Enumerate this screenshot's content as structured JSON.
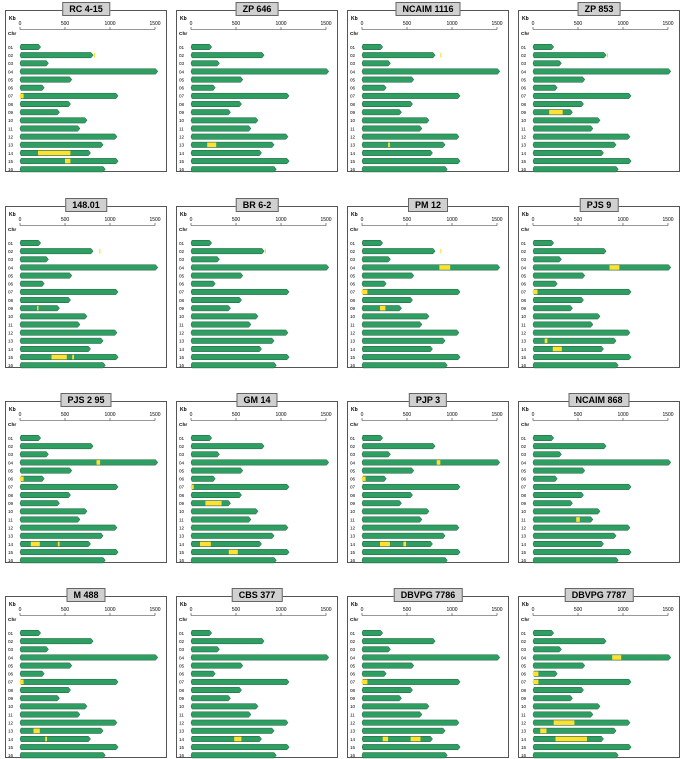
{
  "chart_data": {
    "type": "bar",
    "axis": {
      "unit_label": "Kb",
      "row_label": "Chr",
      "ticks": [
        0,
        500,
        1000,
        1500
      ],
      "xlim": [
        0,
        1500
      ]
    },
    "chromosomes": [
      "01",
      "02",
      "03",
      "04",
      "05",
      "06",
      "07",
      "08",
      "09",
      "10",
      "11",
      "12",
      "13",
      "14",
      "15",
      "16"
    ],
    "chromosome_lengths_kb": [
      230,
      813,
      316,
      1531,
      576,
      270,
      1090,
      562,
      439,
      745,
      666,
      1078,
      924,
      784,
      1091,
      948
    ],
    "colors": {
      "chromosome": "#2e9e62",
      "chromosome_border": "#1d5c3a",
      "highlight": "#ffe033",
      "centromere": "#b9d34a"
    },
    "panels": [
      {
        "title": "RC 4-15",
        "highlights": [
          {
            "chr": "02",
            "start": 820,
            "end": 880
          },
          {
            "chr": "07",
            "start": 0,
            "end": 40
          },
          {
            "chr": "14",
            "start": 200,
            "end": 560
          },
          {
            "chr": "15",
            "start": 500,
            "end": 560
          }
        ]
      },
      {
        "title": "ZP 646",
        "highlights": [
          {
            "chr": "13",
            "start": 180,
            "end": 280
          }
        ]
      },
      {
        "title": "NCAIM 1116",
        "highlights": [
          {
            "chr": "02",
            "start": 870,
            "end": 900
          },
          {
            "chr": "13",
            "start": 290,
            "end": 310
          }
        ]
      },
      {
        "title": "ZP 853",
        "highlights": [
          {
            "chr": "02",
            "start": 820,
            "end": 870
          },
          {
            "chr": "09",
            "start": 180,
            "end": 330
          }
        ]
      },
      {
        "title": "148.01",
        "highlights": [
          {
            "chr": "02",
            "start": 880,
            "end": 895
          },
          {
            "chr": "09",
            "start": 190,
            "end": 205
          },
          {
            "chr": "15",
            "start": 350,
            "end": 520
          },
          {
            "chr": "15",
            "start": 580,
            "end": 600
          }
        ]
      },
      {
        "title": "BR 6-2",
        "highlights": [
          {
            "chr": "02",
            "start": 820,
            "end": 860
          }
        ]
      },
      {
        "title": "PM 12",
        "highlights": [
          {
            "chr": "02",
            "start": 870,
            "end": 895
          },
          {
            "chr": "04",
            "start": 860,
            "end": 980
          },
          {
            "chr": "07",
            "start": 0,
            "end": 60
          },
          {
            "chr": "09",
            "start": 200,
            "end": 260
          }
        ]
      },
      {
        "title": "PJS 9",
        "highlights": [
          {
            "chr": "04",
            "start": 850,
            "end": 960
          },
          {
            "chr": "07",
            "start": 0,
            "end": 50
          },
          {
            "chr": "13",
            "start": 130,
            "end": 160
          },
          {
            "chr": "14",
            "start": 220,
            "end": 320
          }
        ]
      },
      {
        "title": "PJS 2 95",
        "highlights": [
          {
            "chr": "04",
            "start": 850,
            "end": 890
          },
          {
            "chr": "06",
            "start": 0,
            "end": 40
          },
          {
            "chr": "14",
            "start": 120,
            "end": 220
          },
          {
            "chr": "14",
            "start": 420,
            "end": 440
          }
        ]
      },
      {
        "title": "GM 14",
        "highlights": [
          {
            "chr": "07",
            "start": 0,
            "end": 30
          },
          {
            "chr": "09",
            "start": 160,
            "end": 340
          },
          {
            "chr": "14",
            "start": 100,
            "end": 220
          },
          {
            "chr": "15",
            "start": 420,
            "end": 520
          }
        ]
      },
      {
        "title": "PJP 3",
        "highlights": [
          {
            "chr": "04",
            "start": 830,
            "end": 870
          },
          {
            "chr": "06",
            "start": 0,
            "end": 40
          },
          {
            "chr": "14",
            "start": 200,
            "end": 310
          },
          {
            "chr": "14",
            "start": 460,
            "end": 490
          }
        ]
      },
      {
        "title": "NCAIM 868",
        "highlights": [
          {
            "chr": "11",
            "start": 480,
            "end": 520
          }
        ]
      },
      {
        "title": "M 488",
        "highlights": [
          {
            "chr": "07",
            "start": 0,
            "end": 40
          },
          {
            "chr": "13",
            "start": 150,
            "end": 220
          },
          {
            "chr": "14",
            "start": 280,
            "end": 300
          }
        ]
      },
      {
        "title": "CBS 377",
        "highlights": [
          {
            "chr": "14",
            "start": 480,
            "end": 560
          }
        ]
      },
      {
        "title": "DBVPG 7786",
        "highlights": [
          {
            "chr": "07",
            "start": 0,
            "end": 60
          },
          {
            "chr": "14",
            "start": 230,
            "end": 290
          },
          {
            "chr": "14",
            "start": 540,
            "end": 650
          }
        ]
      },
      {
        "title": "DBVPG 7787",
        "highlights": [
          {
            "chr": "04",
            "start": 880,
            "end": 980
          },
          {
            "chr": "06",
            "start": 0,
            "end": 60
          },
          {
            "chr": "07",
            "start": 0,
            "end": 60
          },
          {
            "chr": "12",
            "start": 230,
            "end": 460
          },
          {
            "chr": "13",
            "start": 80,
            "end": 150
          },
          {
            "chr": "14",
            "start": 250,
            "end": 600
          }
        ]
      }
    ]
  }
}
